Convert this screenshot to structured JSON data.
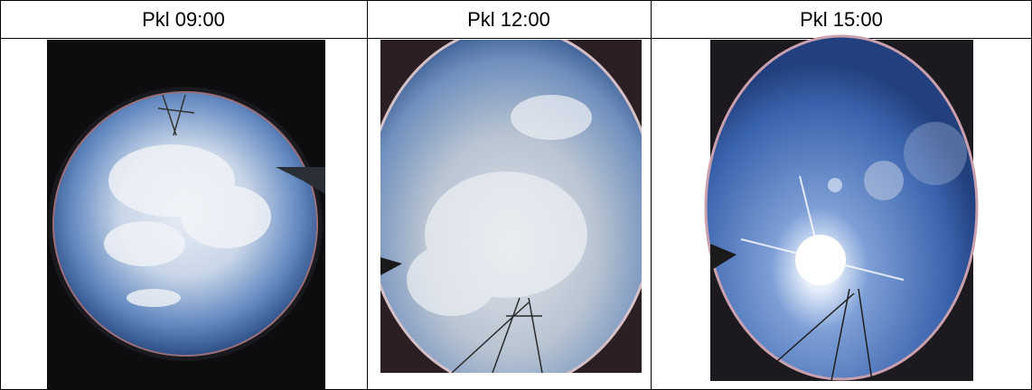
{
  "table": {
    "header": [
      "Pkl 09:00",
      "Pkl 12:00",
      "Pkl 15:00"
    ]
  }
}
